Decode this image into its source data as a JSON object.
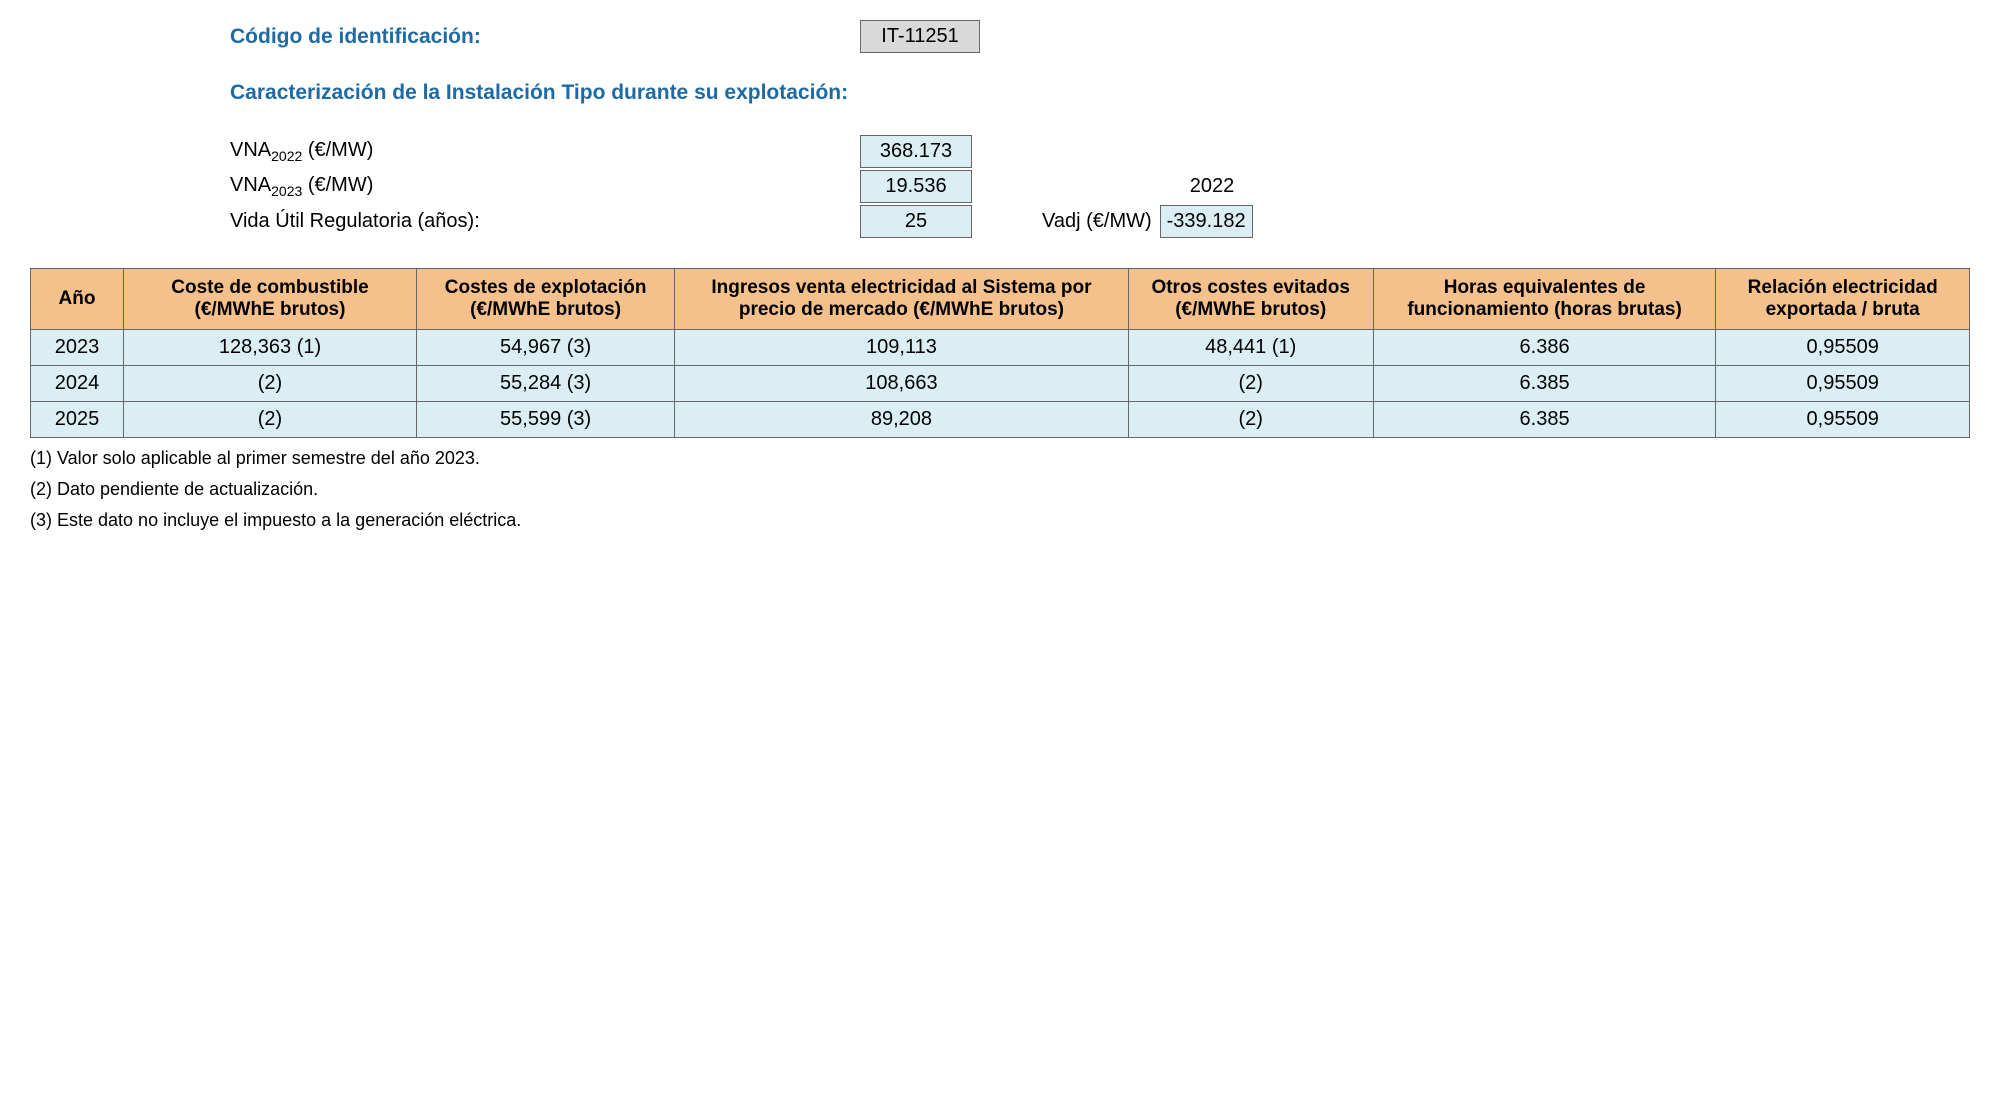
{
  "header": {
    "id_label": "Código de identificación:",
    "id_value": "IT-11251",
    "section_title": "Caracterización de la Instalación Tipo durante su explotación:"
  },
  "params": {
    "vna2022_label_pre": "VNA",
    "vna2022_sub": "2022",
    "vna2022_label_post": " (€/MW)",
    "vna2022_value": "368.173",
    "vna2023_label_pre": "VNA",
    "vna2023_sub": "2023",
    "vna2023_label_post": " (€/MW)",
    "vna2023_value": "19.536",
    "year_right": "2022",
    "vida_label": "Vida Útil Regulatoria (años):",
    "vida_value": "25",
    "vadj_label": "Vadj (€/MW)",
    "vadj_value": "-339.182"
  },
  "table": {
    "headers": [
      "Año",
      "Coste de combustible (€/MWhE brutos)",
      "Costes de explotación (€/MWhE brutos)",
      "Ingresos venta electricidad al Sistema por precio de mercado (€/MWhE brutos)",
      "Otros costes evitados (€/MWhE brutos)",
      "Horas equivalentes de funcionamiento (horas brutas)",
      "Relación electricidad exportada / bruta"
    ],
    "rows": [
      [
        "2023",
        "128,363 (1)",
        "54,967 (3)",
        "109,113",
        "48,441 (1)",
        "6.386",
        "0,95509"
      ],
      [
        "2024",
        "(2)",
        "55,284 (3)",
        "108,663",
        "(2)",
        "6.385",
        "0,95509"
      ],
      [
        "2025",
        "(2)",
        "55,599 (3)",
        "89,208",
        "(2)",
        "6.385",
        "0,95509"
      ]
    ]
  },
  "footnotes": [
    "(1) Valor solo aplicable al primer semestre del año 2023.",
    "(2) Dato pendiente de actualización.",
    "(3) Este dato no incluye el impuesto a la generación eléctrica."
  ],
  "colors": {
    "header_bg": "#f4c08c",
    "cell_bg": "#daeef3",
    "id_bg": "#d9d9d9",
    "border": "#666666",
    "blue_text": "#1f6aa5"
  }
}
